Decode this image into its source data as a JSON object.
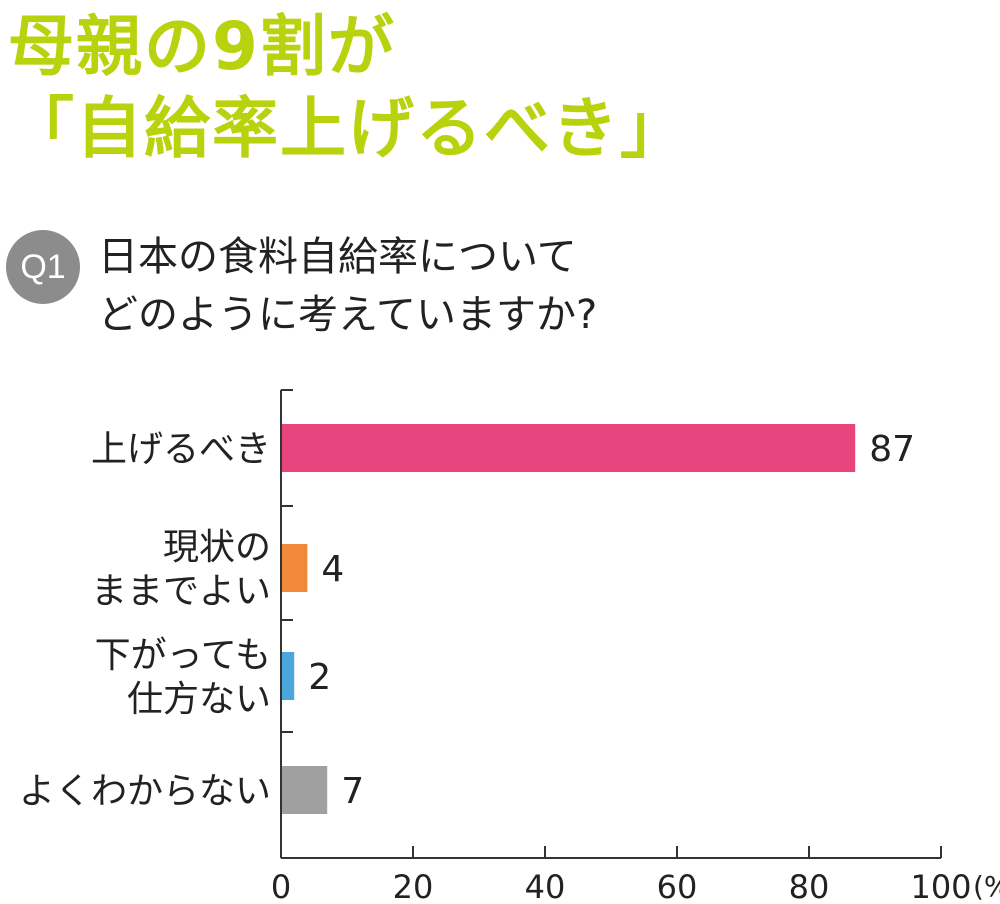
{
  "headline": {
    "line1": "母親の9割が",
    "line2": "「自給率上げるべき」"
  },
  "question": {
    "badge": "Q1",
    "line1": "日本の食料自給率について",
    "line2": "どのように考えていますか?"
  },
  "chart_data": {
    "type": "bar",
    "orientation": "horizontal",
    "categories": [
      [
        "上げるべき"
      ],
      [
        "現状の",
        "ままでよい"
      ],
      [
        "下がっても",
        "仕方ない"
      ],
      [
        "よくわからない"
      ]
    ],
    "values": [
      87,
      4,
      2,
      7
    ],
    "colors": [
      "#e8457e",
      "#f0893a",
      "#4aa6dc",
      "#a0a0a0"
    ],
    "xlim": [
      0,
      100
    ],
    "xticks": [
      0,
      20,
      40,
      60,
      80,
      100
    ],
    "unit": "(%)",
    "grid": false
  }
}
